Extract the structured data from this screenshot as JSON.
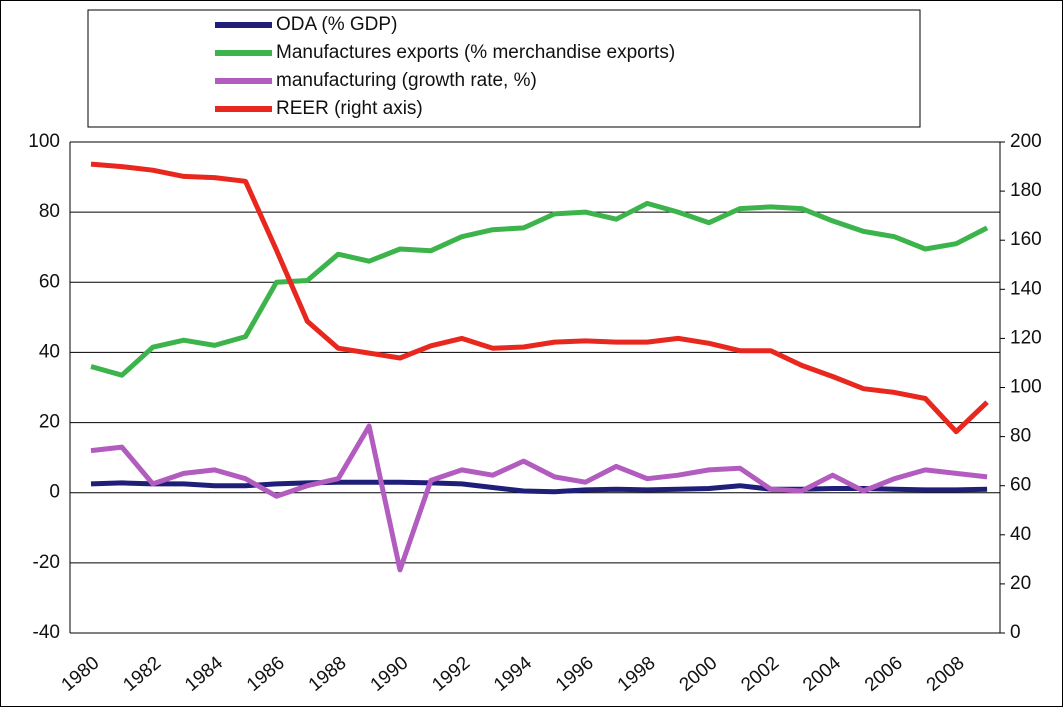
{
  "chart_data": {
    "type": "line",
    "categories": [
      "1980",
      null,
      "1982",
      null,
      "1984",
      null,
      "1986",
      null,
      "1988",
      null,
      "1990",
      null,
      "1992",
      null,
      "1994",
      null,
      "1996",
      null,
      "1998",
      null,
      "2000",
      null,
      "2002",
      null,
      "2004",
      null,
      "2006",
      null,
      "2008",
      null
    ],
    "series": [
      {
        "name": "ODA (% GDP)",
        "color": "#1f1f7a",
        "values": [
          2.5,
          2.8,
          2.5,
          2.5,
          2,
          2,
          2.5,
          2.8,
          3,
          3,
          3,
          2.8,
          2.5,
          1.5,
          0.5,
          0.3,
          0.8,
          1,
          0.8,
          1,
          1.2,
          2,
          1,
          1,
          1.2,
          1.2,
          1,
          0.8,
          0.8,
          1
        ]
      },
      {
        "name": "Manufactures exports (% merchandise exports)",
        "color": "#3cb44b",
        "values": [
          36,
          33.5,
          41.5,
          43.5,
          42,
          44.5,
          60,
          60.5,
          68,
          66,
          69.5,
          69,
          73,
          75,
          75.5,
          79.5,
          80,
          78,
          82.5,
          80,
          77,
          81,
          81.5,
          81,
          77.5,
          74.5,
          73,
          69.5,
          71,
          75.5
        ]
      },
      {
        "name": "manufacturing (growth rate, %)",
        "color": "#b25cc0",
        "values": [
          12,
          13,
          2.5,
          5.5,
          6.5,
          4,
          -1,
          2,
          4,
          19,
          -22,
          3.5,
          6.5,
          5,
          9,
          4.5,
          3,
          7.5,
          4,
          5,
          6.5,
          7,
          1,
          0.5,
          5,
          0.5,
          4,
          6.5,
          5.5,
          4.5
        ]
      },
      {
        "name": "REER (right axis)",
        "color": "#e8281e",
        "axis": "y2",
        "values": [
          191,
          190,
          188.5,
          186,
          185.5,
          184,
          156,
          127,
          116,
          114,
          112,
          117,
          120,
          116,
          116.5,
          118.5,
          119,
          118.5,
          118.5,
          120,
          118,
          115,
          115,
          109,
          104.5,
          99.5,
          98,
          95.5,
          82,
          94
        ]
      }
    ],
    "ylim": [
      -40,
      100
    ],
    "yticks": [
      -40,
      -20,
      0,
      20,
      40,
      60,
      80,
      100
    ],
    "y2lim": [
      0,
      200
    ],
    "y2ticks": [
      0,
      20,
      40,
      60,
      80,
      100,
      120,
      140,
      160,
      180,
      200
    ],
    "grid": true
  }
}
